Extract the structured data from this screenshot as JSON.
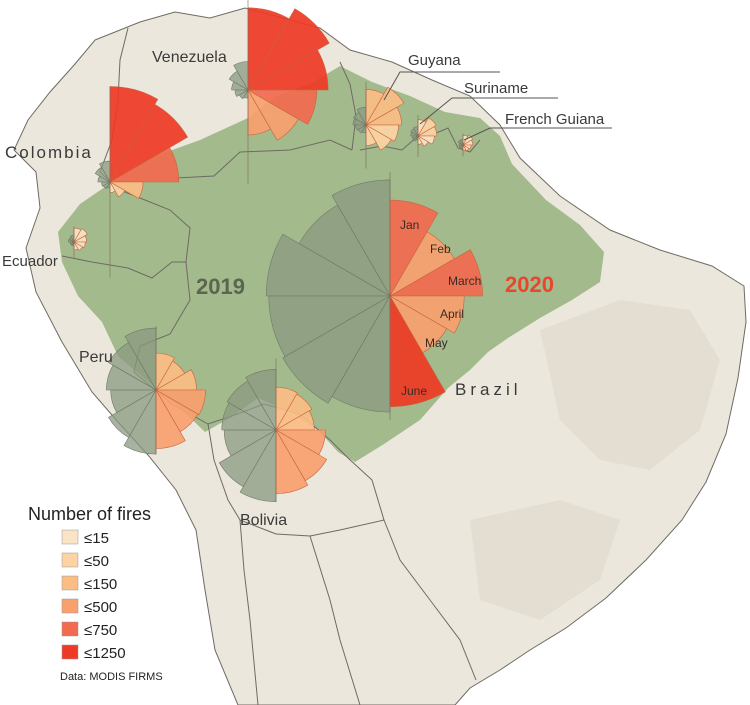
{
  "colors": {
    "ocean": "#ffffff",
    "land": "#ece7dc",
    "land_shade": "#e0d9cb",
    "border": "#6f6a63",
    "amazon": "#a3ba8c",
    "y2019": "#8a9a80",
    "y2020_fills": [
      "#fbe3c5",
      "#fdd3a3",
      "#fbbd84",
      "#f9a06e",
      "#f26a4f",
      "#ee3a24"
    ]
  },
  "labels": {
    "venezuela": "Venezuela",
    "guyana": "Guyana",
    "suriname": "Suriname",
    "french_guiana": "French Guiana",
    "colombia": "Colombia",
    "ecuador": "Ecuador",
    "peru": "Peru",
    "brazil": "Brazil",
    "bolivia": "Bolivia"
  },
  "years": {
    "y2019": "2019",
    "y2020": "2020"
  },
  "months": [
    "Jan",
    "Feb",
    "March",
    "April",
    "May",
    "June"
  ],
  "legend": {
    "title": "Number of fires",
    "items": [
      {
        "label": "≤15",
        "color": "#fbe3c5"
      },
      {
        "label": "≤50",
        "color": "#fdd3a3"
      },
      {
        "label": "≤150",
        "color": "#fbbd84"
      },
      {
        "label": "≤500",
        "color": "#f9a06e"
      },
      {
        "label": "≤750",
        "color": "#f26a4f"
      },
      {
        "label": "≤1250",
        "color": "#ee3a24"
      }
    ]
  },
  "source": "Data: MODIS FIRMS",
  "fires": {
    "brazil": {
      "y2019": [
        1100,
        900,
        1250,
        1200,
        1250,
        1100
      ],
      "y2020": [
        750,
        450,
        700,
        450,
        350,
        1000
      ]
    },
    "venezuela": {
      "y2019": [
        120,
        70,
        40,
        25,
        15,
        10
      ],
      "y2020": [
        1000,
        1300,
        950,
        700,
        500,
        300
      ]
    },
    "colombia": {
      "y2019": [
        60,
        40,
        20,
        10,
        8,
        5
      ],
      "y2020": [
        1250,
        1100,
        650,
        150,
        40,
        15
      ]
    },
    "guyana": {
      "y2019": [
        15,
        10,
        8,
        5,
        4,
        3
      ],
      "y2020": [
        60,
        90,
        60,
        50,
        40,
        20
      ]
    },
    "suriname": {
      "y2019": [
        5,
        4,
        3,
        2,
        2,
        1
      ],
      "y2020": [
        15,
        25,
        20,
        15,
        8,
        4
      ]
    },
    "french_guiana": {
      "y2019": [
        2,
        2,
        1,
        1,
        1,
        1
      ],
      "y2020": [
        6,
        8,
        6,
        4,
        3,
        2
      ]
    },
    "ecuador": {
      "y2019": [
        3,
        2,
        2,
        1,
        1,
        1
      ],
      "y2020": [
        12,
        15,
        10,
        8,
        6,
        4
      ]
    },
    "peru": {
      "y2019": [
        280,
        220,
        180,
        150,
        220,
        300
      ],
      "y2020": [
        100,
        80,
        120,
        180,
        170,
        250
      ]
    },
    "bolivia": {
      "y2019": [
        300,
        260,
        240,
        220,
        350,
        420
      ],
      "y2020": [
        150,
        140,
        120,
        200,
        280,
        330
      ]
    }
  }
}
